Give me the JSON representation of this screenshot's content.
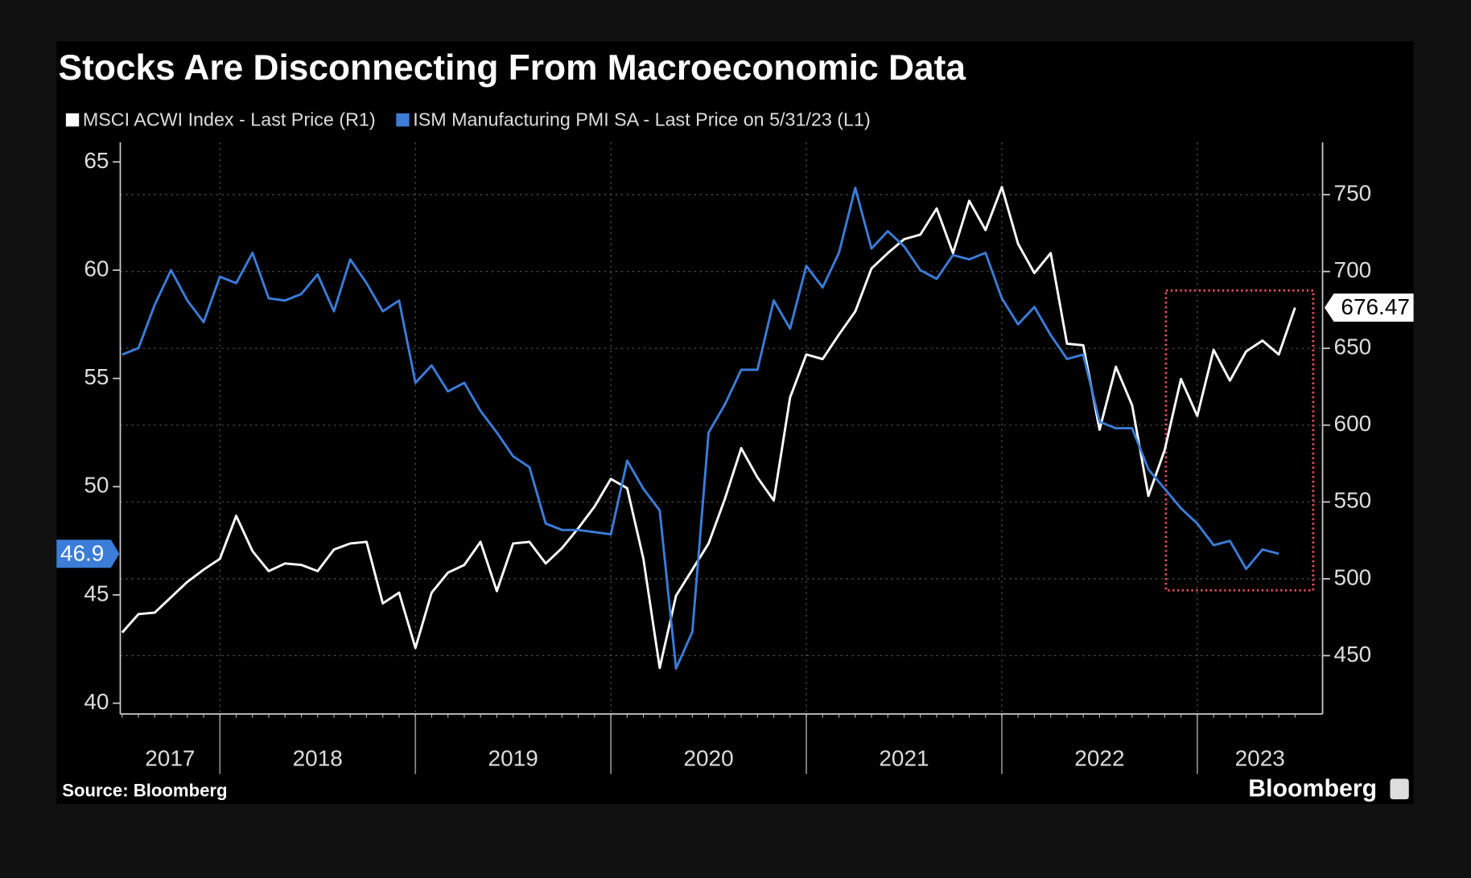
{
  "chart_data": {
    "type": "line",
    "title": "Stocks Are Disconnecting From Macroeconomic Data",
    "source": "Source: Bloomberg",
    "brand": "Bloomberg",
    "x": [
      "2017-06",
      "2017-07",
      "2017-08",
      "2017-09",
      "2017-10",
      "2017-11",
      "2017-12",
      "2018-01",
      "2018-02",
      "2018-03",
      "2018-04",
      "2018-05",
      "2018-06",
      "2018-07",
      "2018-08",
      "2018-09",
      "2018-10",
      "2018-11",
      "2018-12",
      "2019-01",
      "2019-02",
      "2019-03",
      "2019-04",
      "2019-05",
      "2019-06",
      "2019-07",
      "2019-08",
      "2019-09",
      "2019-10",
      "2019-11",
      "2019-12",
      "2020-01",
      "2020-02",
      "2020-03",
      "2020-04",
      "2020-05",
      "2020-06",
      "2020-07",
      "2020-08",
      "2020-09",
      "2020-10",
      "2020-11",
      "2020-12",
      "2021-01",
      "2021-02",
      "2021-03",
      "2021-04",
      "2021-05",
      "2021-06",
      "2021-07",
      "2021-08",
      "2021-09",
      "2021-10",
      "2021-11",
      "2021-12",
      "2022-01",
      "2022-02",
      "2022-03",
      "2022-04",
      "2022-05",
      "2022-06",
      "2022-07",
      "2022-08",
      "2022-09",
      "2022-10",
      "2022-11",
      "2022-12",
      "2023-01",
      "2023-02",
      "2023-03",
      "2023-04",
      "2023-05",
      "2023-06"
    ],
    "x_axis_labels": [
      "2017",
      "2018",
      "2019",
      "2020",
      "2021",
      "2022",
      "2023"
    ],
    "series": [
      {
        "name": "MSCI ACWI Index - Last Price (R1)",
        "color": "#ffffff",
        "axis": "y2",
        "end_label": "676.47",
        "values": [
          465,
          477,
          478,
          488,
          498,
          506,
          513,
          541,
          518,
          505,
          510,
          509,
          505,
          519,
          523,
          524,
          484,
          491,
          455,
          491,
          504,
          509,
          524,
          492,
          523,
          524,
          510,
          520,
          533,
          547,
          565,
          559,
          513,
          442,
          489,
          506,
          523,
          552,
          585,
          566,
          551,
          618,
          646,
          643,
          659,
          674,
          702,
          712,
          721,
          724,
          741,
          712,
          746,
          727,
          755,
          718,
          699,
          712,
          653,
          652,
          597,
          638,
          613,
          554,
          584,
          630,
          606,
          649,
          629,
          648,
          655,
          646,
          676.47
        ]
      },
      {
        "name": "ISM Manufacturing PMI SA - Last Price on 5/31/23 (L1)",
        "color": "#3b7dd8",
        "axis": "y",
        "end_label": "46.9",
        "values": [
          56.1,
          56.4,
          58.4,
          60.0,
          58.6,
          57.6,
          59.7,
          59.4,
          60.8,
          58.7,
          58.6,
          58.9,
          59.8,
          58.1,
          60.5,
          59.4,
          58.1,
          58.6,
          54.8,
          55.6,
          54.4,
          54.8,
          53.5,
          52.5,
          51.4,
          50.9,
          48.3,
          48.0,
          48.0,
          47.9,
          47.8,
          51.2,
          49.9,
          48.9,
          41.6,
          43.3,
          52.5,
          53.8,
          55.4,
          55.4,
          58.6,
          57.3,
          60.2,
          59.2,
          60.8,
          63.8,
          61.0,
          61.8,
          61.1,
          60.0,
          59.6,
          60.7,
          60.5,
          60.8,
          58.7,
          57.5,
          58.3,
          57.0,
          55.9,
          56.1,
          53.0,
          52.7,
          52.7,
          50.8,
          49.9,
          49.0,
          48.3,
          47.3,
          47.5,
          46.2,
          47.1,
          46.9,
          null
        ]
      }
    ],
    "ylim": [
      39.5,
      65.9
    ],
    "yticks": [
      40,
      45,
      50,
      55,
      60,
      65
    ],
    "y2lim": [
      412,
      784
    ],
    "y2ticks": [
      450,
      500,
      550,
      600,
      650,
      700,
      750
    ],
    "grid": true
  }
}
